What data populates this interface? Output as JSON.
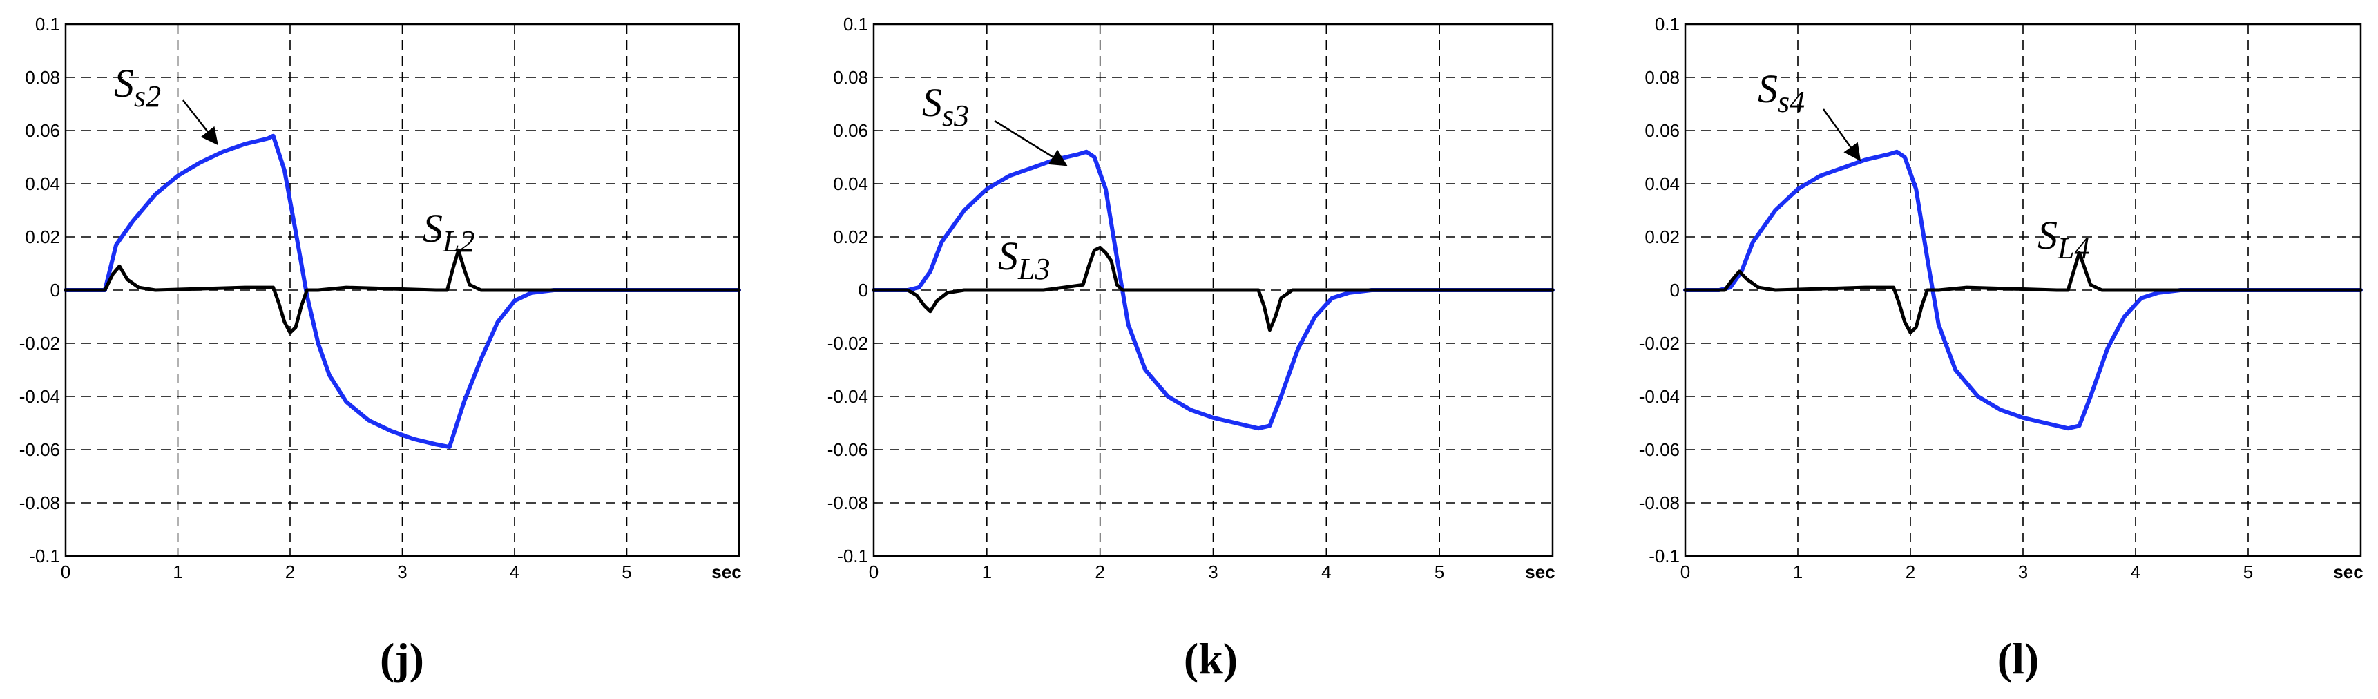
{
  "figure": {
    "panels": [
      {
        "label": "(j)",
        "annotations": [
          {
            "main": "S",
            "sub": "s2",
            "target": [
              1.35,
              0.055
            ]
          },
          {
            "main": "S",
            "sub": "L2",
            "target": null
          }
        ]
      },
      {
        "label": "(k)",
        "annotations": [
          {
            "main": "S",
            "sub": "s3",
            "target": [
              1.7,
              0.047
            ]
          },
          {
            "main": "S",
            "sub": "L3",
            "target": null
          }
        ]
      },
      {
        "label": "(l)",
        "annotations": [
          {
            "main": "S",
            "sub": "s4",
            "target": [
              1.55,
              0.049
            ]
          },
          {
            "main": "S",
            "sub": "L4",
            "target": null
          }
        ]
      }
    ],
    "colors": {
      "blue_series": "#1a2ff5",
      "black_series": "#000000",
      "grid": "#000000"
    }
  },
  "chart_data": [
    {
      "type": "line",
      "xlim": [
        0,
        6
      ],
      "ylim": [
        -0.1,
        0.1
      ],
      "xticks": [
        "0",
        "1",
        "2",
        "3",
        "4",
        "5",
        "sec"
      ],
      "yticks": [
        "0.1",
        "0.08",
        "0.06",
        "0.04",
        "0.02",
        "0",
        "-0.02",
        "-0.04",
        "-0.06",
        "-0.08",
        "-0.1"
      ],
      "grid": true,
      "series": [
        {
          "color": "#1a2ff5",
          "x": [
            0,
            0.35,
            0.45,
            0.6,
            0.8,
            1.0,
            1.2,
            1.4,
            1.6,
            1.8,
            1.85,
            1.95,
            2.05,
            2.15,
            2.25,
            2.35,
            2.5,
            2.7,
            2.9,
            3.1,
            3.3,
            3.42,
            3.55,
            3.7,
            3.85,
            4.0,
            4.15,
            4.35,
            6
          ],
          "y": [
            0,
            0,
            0.017,
            0.026,
            0.036,
            0.043,
            0.048,
            0.052,
            0.055,
            0.057,
            0.058,
            0.045,
            0.022,
            -0.002,
            -0.02,
            -0.032,
            -0.042,
            -0.049,
            -0.053,
            -0.056,
            -0.058,
            -0.059,
            -0.042,
            -0.026,
            -0.012,
            -0.004,
            -0.001,
            0,
            0
          ]
        },
        {
          "color": "#000000",
          "x": [
            0,
            0.35,
            0.42,
            0.48,
            0.55,
            0.65,
            0.8,
            1.6,
            1.85,
            1.9,
            1.95,
            2.0,
            2.05,
            2.1,
            2.15,
            2.25,
            2.5,
            3.3,
            3.4,
            3.45,
            3.5,
            3.55,
            3.6,
            3.7,
            6
          ],
          "y": [
            0,
            0,
            0.006,
            0.009,
            0.004,
            0.001,
            0,
            0.001,
            0.001,
            -0.005,
            -0.012,
            -0.016,
            -0.014,
            -0.006,
            0,
            0,
            0.001,
            0,
            0,
            0.008,
            0.015,
            0.008,
            0.002,
            0,
            0
          ]
        }
      ]
    },
    {
      "type": "line",
      "xlim": [
        0,
        6
      ],
      "ylim": [
        -0.1,
        0.1
      ],
      "xticks": [
        "0",
        "1",
        "2",
        "3",
        "4",
        "5",
        "sec"
      ],
      "yticks": [
        "0.1",
        "0.08",
        "0.06",
        "0.04",
        "0.02",
        "0",
        "-0.02",
        "-0.04",
        "-0.06",
        "-0.08",
        "-0.1"
      ],
      "grid": true,
      "series": [
        {
          "color": "#1a2ff5",
          "x": [
            0,
            0.3,
            0.4,
            0.5,
            0.6,
            0.8,
            1.0,
            1.2,
            1.4,
            1.6,
            1.8,
            1.88,
            1.95,
            2.05,
            2.15,
            2.25,
            2.4,
            2.6,
            2.8,
            3.0,
            3.2,
            3.4,
            3.5,
            3.6,
            3.75,
            3.9,
            4.05,
            4.2,
            4.4,
            6
          ],
          "y": [
            0,
            0,
            0.001,
            0.007,
            0.018,
            0.03,
            0.038,
            0.043,
            0.046,
            0.049,
            0.051,
            0.052,
            0.05,
            0.038,
            0.012,
            -0.013,
            -0.03,
            -0.04,
            -0.045,
            -0.048,
            -0.05,
            -0.052,
            -0.051,
            -0.04,
            -0.022,
            -0.01,
            -0.003,
            -0.001,
            0,
            0
          ]
        },
        {
          "color": "#000000",
          "x": [
            0,
            0.3,
            0.38,
            0.45,
            0.5,
            0.56,
            0.65,
            0.8,
            1.5,
            1.85,
            1.9,
            1.95,
            2.0,
            2.05,
            2.1,
            2.15,
            2.2,
            2.3,
            3.3,
            3.4,
            3.45,
            3.5,
            3.55,
            3.6,
            3.7,
            6
          ],
          "y": [
            0,
            0,
            -0.002,
            -0.006,
            -0.008,
            -0.004,
            -0.001,
            0,
            0,
            0.002,
            0.009,
            0.015,
            0.016,
            0.014,
            0.011,
            0.002,
            0,
            0,
            0,
            0,
            -0.006,
            -0.015,
            -0.01,
            -0.003,
            0,
            0
          ]
        }
      ]
    },
    {
      "type": "line",
      "xlim": [
        0,
        6
      ],
      "ylim": [
        -0.1,
        0.1
      ],
      "xticks": [
        "0",
        "1",
        "2",
        "3",
        "4",
        "5",
        "sec"
      ],
      "yticks": [
        "0.1",
        "0.08",
        "0.06",
        "0.04",
        "0.02",
        "0",
        "-0.02",
        "-0.04",
        "-0.06",
        "-0.08",
        "-0.1"
      ],
      "grid": true,
      "series": [
        {
          "color": "#1a2ff5",
          "x": [
            0,
            0.3,
            0.4,
            0.5,
            0.6,
            0.8,
            1.0,
            1.2,
            1.4,
            1.6,
            1.8,
            1.88,
            1.95,
            2.05,
            2.15,
            2.25,
            2.4,
            2.6,
            2.8,
            3.0,
            3.2,
            3.4,
            3.5,
            3.6,
            3.75,
            3.9,
            4.05,
            4.2,
            4.4,
            6
          ],
          "y": [
            0,
            0,
            0.001,
            0.007,
            0.018,
            0.03,
            0.038,
            0.043,
            0.046,
            0.049,
            0.051,
            0.052,
            0.05,
            0.038,
            0.012,
            -0.013,
            -0.03,
            -0.04,
            -0.045,
            -0.048,
            -0.05,
            -0.052,
            -0.051,
            -0.04,
            -0.022,
            -0.01,
            -0.003,
            -0.001,
            0,
            0
          ]
        },
        {
          "color": "#000000",
          "x": [
            0,
            0.35,
            0.42,
            0.48,
            0.55,
            0.65,
            0.8,
            1.6,
            1.85,
            1.9,
            1.95,
            2.0,
            2.05,
            2.1,
            2.15,
            2.25,
            2.5,
            3.3,
            3.4,
            3.45,
            3.5,
            3.55,
            3.6,
            3.7,
            6
          ],
          "y": [
            0,
            0,
            0.004,
            0.007,
            0.004,
            0.001,
            0,
            0.001,
            0.001,
            -0.005,
            -0.012,
            -0.016,
            -0.014,
            -0.006,
            0,
            0,
            0.001,
            0,
            0,
            0.007,
            0.014,
            0.008,
            0.002,
            0,
            0
          ]
        }
      ]
    }
  ]
}
